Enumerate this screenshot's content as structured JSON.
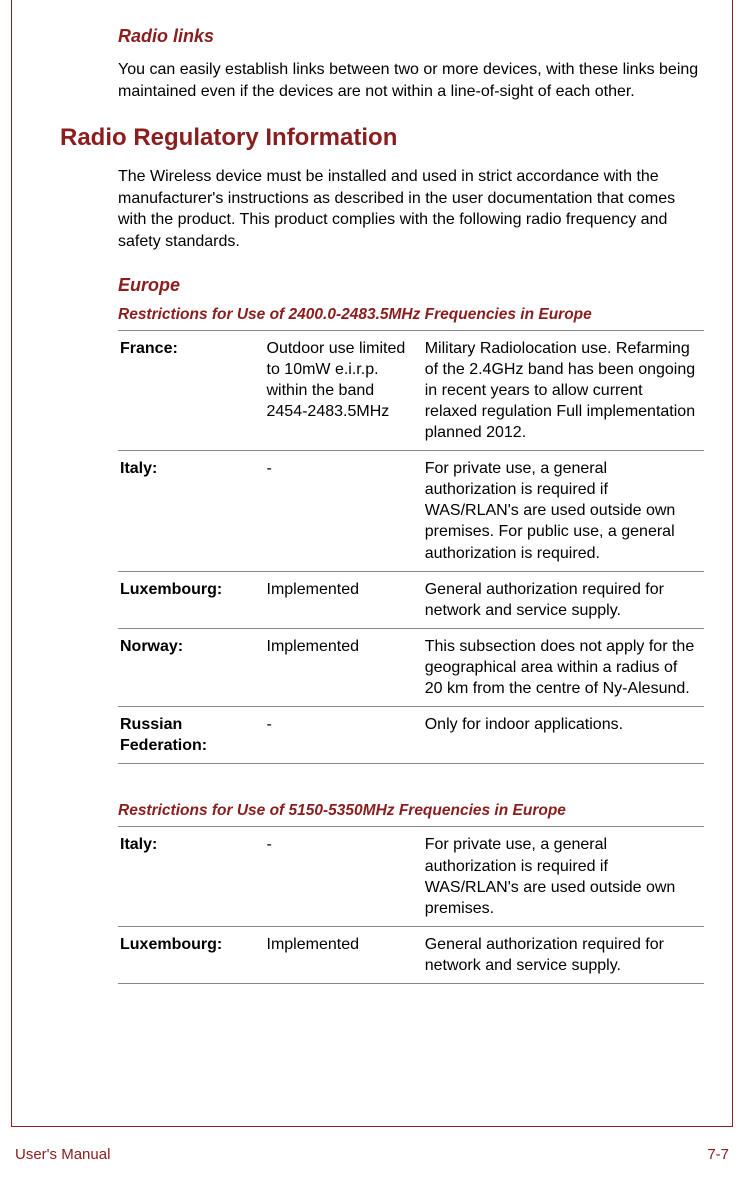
{
  "section1": {
    "heading": "Radio links",
    "paragraph": "You can easily establish links between two or more devices, with these links being maintained even if the devices are not within a line-of-sight of each other."
  },
  "section2": {
    "heading": "Radio Regulatory Information",
    "paragraph": "The Wireless device must be installed and used in strict accordance with the manufacturer's instructions as described in the user documentation that comes with the product. This product complies with the following radio frequency and safety standards."
  },
  "europe": {
    "heading": "Europe"
  },
  "table1": {
    "heading": "Restrictions for Use of 2400.0-2483.5MHz Frequencies in Europe",
    "rows": [
      {
        "country": "France:",
        "status": "Outdoor use limited to 10mW e.i.r.p. within the band 2454-2483.5MHz",
        "note": "Military Radiolocation use. Refarming of the 2.4GHz band has been ongoing in recent years to allow current relaxed regulation Full implementation planned 2012."
      },
      {
        "country": "Italy:",
        "status": "-",
        "note": "For private use, a general authorization is required if WAS/RLAN's are used outside own premises. For public use, a general authorization is required."
      },
      {
        "country": "Luxembourg:",
        "status": "Implemented",
        "note": "General authorization required for network and service supply."
      },
      {
        "country": "Norway:",
        "status": "Implemented",
        "note": "This subsection does not apply for the geographical area within a radius of 20 km from the centre of Ny-Alesund."
      },
      {
        "country": "Russian Federation:",
        "status": "-",
        "note": "Only for indoor applications."
      }
    ]
  },
  "table2": {
    "heading": "Restrictions for Use of 5150-5350MHz Frequencies in Europe",
    "rows": [
      {
        "country": "Italy:",
        "status": "-",
        "note": "For private use, a general authorization is required if WAS/RLAN's are used outside own premises."
      },
      {
        "country": "Luxembourg:",
        "status": "Implemented",
        "note": "General authorization required for network and service supply."
      }
    ]
  },
  "footer": {
    "left": "User's Manual",
    "right": "7-7"
  },
  "colors": {
    "accent": "#8a1e1e",
    "rule": "#888888",
    "text": "#000000",
    "background": "#ffffff"
  }
}
